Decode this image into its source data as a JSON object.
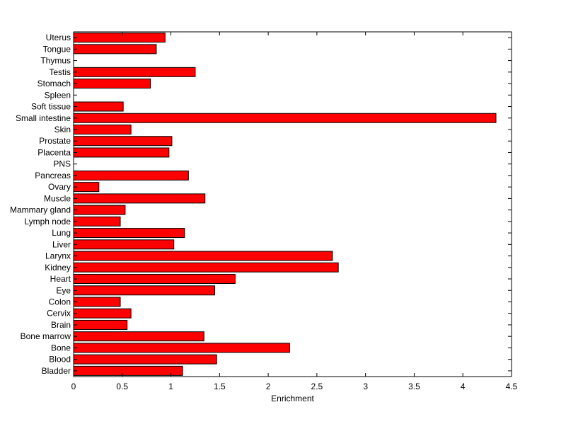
{
  "chart_data": {
    "type": "bar",
    "orientation": "horizontal",
    "title": "",
    "xlabel": "Enrichment",
    "ylabel": "",
    "xlim": [
      0,
      4.5
    ],
    "xticks": [
      "0",
      "0.5",
      "1",
      "1.5",
      "2",
      "2.5",
      "3",
      "3.5",
      "4",
      "4.5"
    ],
    "grid": false,
    "bar_color": "#ff0000",
    "categories": [
      "Bladder",
      "Blood",
      "Bone",
      "Bone marrow",
      "Brain",
      "Cervix",
      "Colon",
      "Eye",
      "Heart",
      "Kidney",
      "Larynx",
      "Liver",
      "Lung",
      "Lymph node",
      "Mammary gland",
      "Muscle",
      "Ovary",
      "Pancreas",
      "PNS",
      "Placenta",
      "Prostate",
      "Skin",
      "Small intestine",
      "Soft tissue",
      "Spleen",
      "Stomach",
      "Testis",
      "Thymus",
      "Tongue",
      "Uterus"
    ],
    "values": [
      1.12,
      1.47,
      2.22,
      1.34,
      0.55,
      0.59,
      0.48,
      1.45,
      1.66,
      2.72,
      2.66,
      1.03,
      1.14,
      0.48,
      0.53,
      1.35,
      0.26,
      1.18,
      0,
      0.98,
      1.01,
      0.59,
      4.34,
      0.51,
      0,
      0.79,
      1.25,
      0,
      0.85,
      0.94
    ]
  }
}
